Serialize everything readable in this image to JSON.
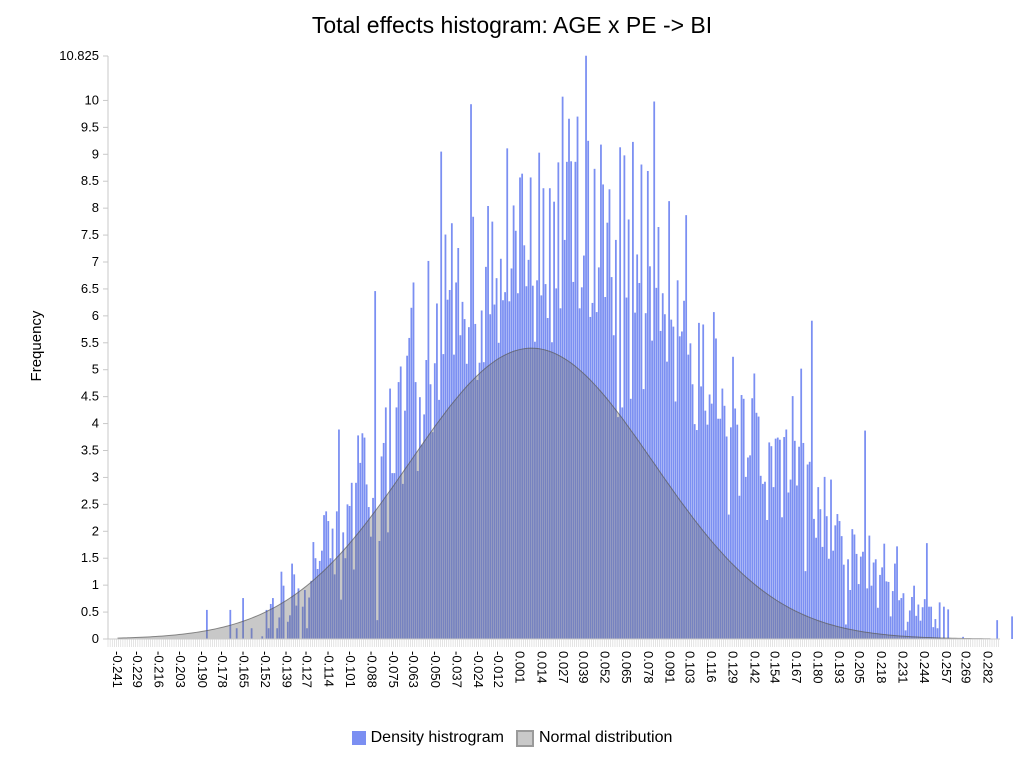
{
  "chart_data": {
    "type": "bar",
    "title": "Total effects histogram: AGE x PE -> BI",
    "xlabel": "",
    "ylabel": "Frequency",
    "xlim": [
      -0.247,
      0.289
    ],
    "ylim": [
      0,
      10.825
    ],
    "y_ticks": [
      0,
      0.5,
      1,
      1.5,
      2,
      2.5,
      3,
      3.5,
      4,
      4.5,
      5,
      5.5,
      6,
      6.5,
      7,
      7.5,
      8,
      8.5,
      9,
      9.5,
      10,
      10.825
    ],
    "y_tick_labels": [
      "0",
      "0.5",
      "1",
      "1.5",
      "2",
      "2.5",
      "3",
      "3.5",
      "4",
      "4.5",
      "5",
      "5.5",
      "6",
      "6.5",
      "7",
      "7.5",
      "8",
      "8.5",
      "9",
      "9.5",
      "10",
      "10.825"
    ],
    "x_tick_labels": [
      "-0.241",
      "-0.229",
      "-0.216",
      "-0.203",
      "-0.190",
      "-0.178",
      "-0.165",
      "-0.152",
      "-0.139",
      "-0.127",
      "-0.114",
      "-0.101",
      "-0.088",
      "-0.075",
      "-0.063",
      "-0.050",
      "-0.037",
      "-0.024",
      "-0.012",
      "0.001",
      "0.014",
      "0.027",
      "0.039",
      "0.052",
      "0.065",
      "0.078",
      "0.091",
      "0.103",
      "0.116",
      "0.129",
      "0.142",
      "0.154",
      "0.167",
      "0.180",
      "0.193",
      "0.205",
      "0.218",
      "0.231",
      "0.244",
      "0.257",
      "0.269",
      "0.282"
    ],
    "x_ticks": [
      -0.241,
      -0.229,
      -0.216,
      -0.203,
      -0.19,
      -0.178,
      -0.165,
      -0.152,
      -0.139,
      -0.127,
      -0.114,
      -0.101,
      -0.088,
      -0.075,
      -0.063,
      -0.05,
      -0.037,
      -0.024,
      -0.012,
      0.001,
      0.014,
      0.027,
      0.039,
      0.052,
      0.065,
      0.078,
      0.091,
      0.103,
      0.116,
      0.129,
      0.142,
      0.154,
      0.167,
      0.18,
      0.193,
      0.205,
      0.218,
      0.231,
      0.244,
      0.257,
      0.269,
      0.282
    ],
    "histogram": {
      "name": "Density histrogram",
      "color": "#7b8ff2",
      "bin_start": -0.247,
      "bin_width": 0.00128,
      "values": [
        0,
        0,
        0,
        0,
        0,
        0,
        0,
        0,
        0,
        0,
        0,
        0,
        0,
        0,
        0,
        0,
        0,
        0,
        0,
        0,
        0,
        0,
        0,
        0,
        0,
        0,
        0,
        0,
        0,
        0,
        0,
        0,
        0,
        0,
        0,
        0,
        0,
        0,
        0,
        0,
        0,
        0,
        0,
        0,
        0,
        0,
        0.54,
        0,
        0,
        0,
        0,
        0,
        0,
        0,
        0,
        0,
        0,
        0.54,
        0,
        0,
        0.2,
        0,
        0,
        0.76,
        0,
        0,
        0,
        0.2,
        0,
        0,
        0,
        0,
        0.05,
        0,
        0.54,
        0.2,
        0.65,
        0.76,
        0,
        0.2,
        0.4,
        1.25,
        0.99,
        0,
        0.32,
        0.44,
        1.4,
        1.2,
        0.62,
        0.94,
        0,
        0.6,
        0.91,
        0.2,
        0.77,
        1.08,
        1.8,
        1.5,
        1.3,
        1.45,
        1.64,
        2.3,
        2.37,
        2.19,
        1.5,
        2.05,
        1.2,
        2.37,
        3.89,
        0.73,
        1.98,
        1.5,
        2.5,
        2.47,
        2.9,
        1.29,
        2.9,
        3.78,
        3.27,
        3.82,
        3.74,
        2.87,
        2.45,
        1.9,
        2.62,
        6.46,
        0.35,
        1.82,
        3.39,
        3.64,
        4.3,
        1.98,
        4.65,
        3.08,
        3.08,
        4.3,
        4.77,
        5.06,
        2.88,
        4.24,
        5.26,
        5.59,
        6.15,
        6.62,
        4.77,
        3.12,
        4.49,
        3.61,
        4.17,
        5.18,
        7.02,
        4.73,
        3.84,
        5.12,
        6.23,
        4.44,
        9.05,
        5.29,
        7.51,
        6.3,
        6.48,
        7.72,
        5.28,
        6.62,
        7.26,
        5.64,
        6.26,
        5.94,
        5.11,
        5.79,
        9.93,
        7.84,
        5.85,
        4.81,
        5.13,
        6.1,
        5.14,
        6.91,
        8.04,
        6.03,
        7.75,
        6.21,
        6.7,
        5.5,
        7.06,
        6.29,
        6.44,
        9.11,
        6.27,
        6.88,
        8.05,
        7.58,
        6.42,
        8.57,
        8.64,
        7.31,
        6.55,
        7.04,
        8.57,
        6.56,
        5.52,
        6.66,
        9.03,
        6.38,
        8.37,
        6.59,
        5.96,
        8.37,
        5.51,
        8.12,
        6.51,
        8.85,
        6.14,
        10.07,
        7.41,
        8.86,
        9.66,
        8.87,
        6.63,
        8.86,
        9.7,
        6.14,
        6.53,
        7.12,
        10.83,
        9.25,
        5.98,
        6.24,
        8.73,
        6.07,
        6.9,
        9.18,
        8.44,
        6.35,
        7.73,
        8.35,
        6.72,
        5.64,
        7.41,
        4.12,
        9.13,
        4.3,
        8.98,
        6.34,
        7.79,
        4.46,
        9.23,
        6.06,
        7.14,
        6.61,
        8.81,
        4.64,
        6.05,
        8.69,
        6.92,
        5.54,
        9.98,
        6.52,
        7.65,
        5.72,
        6.42,
        6.03,
        5.15,
        8.13,
        5.93,
        5.8,
        4.41,
        6.66,
        5.62,
        5.71,
        6.28,
        7.87,
        5.28,
        5.49,
        4.73,
        3.99,
        3.88,
        5.87,
        4.69,
        5.84,
        4.24,
        3.98,
        4.54,
        4.37,
        6.07,
        5.58,
        4.09,
        4.09,
        4.65,
        4.33,
        3.76,
        2.31,
        3.93,
        5.24,
        4.28,
        3.98,
        2.66,
        4.53,
        4.46,
        3.01,
        3.37,
        3.41,
        4.47,
        4.93,
        4.2,
        4.13,
        3.03,
        2.88,
        2.92,
        2.21,
        3.65,
        3.58,
        2.82,
        3.72,
        3.74,
        3.7,
        2.26,
        3.75,
        3.89,
        2.72,
        2.96,
        4.51,
        3.68,
        2.85,
        3.57,
        5.02,
        3.64,
        1.26,
        3.24,
        3.29,
        5.91,
        2.23,
        1.88,
        2.82,
        2.41,
        1.71,
        3.01,
        2.28,
        1.49,
        2.96,
        1.64,
        2.11,
        2.32,
        2.19,
        1.91,
        1.38,
        0.27,
        1.48,
        0.91,
        2.04,
        1.94,
        1.58,
        1.02,
        1.53,
        1.62,
        3.87,
        0.94,
        1.92,
        0.99,
        1.42,
        1.48,
        0.58,
        1.19,
        1.33,
        1.77,
        1.07,
        1.06,
        0.42,
        0.89,
        1.4,
        1.72,
        0.72,
        0.76,
        0.85,
        0.16,
        0.32,
        0.53,
        0.78,
        0.99,
        0.43,
        0.64,
        0.34,
        0.59,
        0.74,
        1.78,
        0.6,
        0.6,
        0.22,
        0.37,
        0.2,
        0.68,
        0,
        0.6,
        0,
        0.55,
        0,
        0,
        0,
        0,
        0,
        0,
        0.04,
        0,
        0,
        0,
        0,
        0,
        0,
        0,
        0,
        0,
        0,
        0,
        0,
        0,
        0,
        0,
        0.35,
        0,
        0,
        0,
        0,
        0,
        0,
        0.42,
        0,
        0,
        0,
        0,
        0,
        0,
        0,
        0,
        0,
        0,
        0,
        0,
        0,
        0,
        0,
        0,
        0,
        0,
        0,
        0,
        0,
        0,
        0,
        0,
        0,
        0,
        0.42,
        0,
        0,
        0,
        0,
        0,
        0,
        0,
        0,
        0,
        0,
        0,
        0,
        0,
        0,
        0,
        0,
        0,
        0,
        0,
        0,
        0,
        0,
        0,
        0,
        0,
        0,
        0,
        0,
        0,
        0,
        0,
        0,
        0,
        0,
        0,
        0,
        0,
        0,
        0,
        0,
        0,
        0,
        0,
        0,
        0,
        0,
        0,
        0,
        0,
        0
      ]
    },
    "normal": {
      "name": "Normal distribution",
      "mean": 0.0075,
      "sd": 0.0733,
      "peak": 5.4,
      "color": "#9a9a9a"
    },
    "legend": {
      "position": "bottom-center",
      "items": [
        {
          "label": "Density histrogram",
          "color": "#7b8ff2"
        },
        {
          "label": "Normal distribution",
          "color": "#c9c9c9"
        }
      ]
    },
    "grid": false
  }
}
